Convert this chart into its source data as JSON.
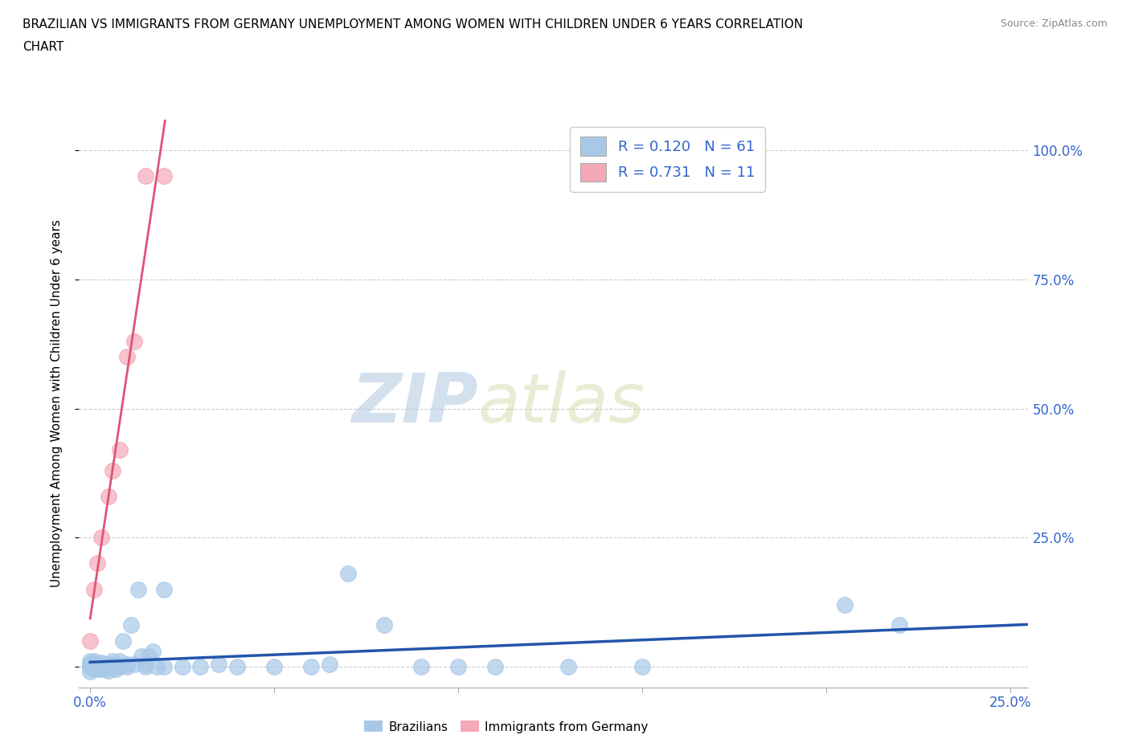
{
  "title_line1": "BRAZILIAN VS IMMIGRANTS FROM GERMANY UNEMPLOYMENT AMONG WOMEN WITH CHILDREN UNDER 6 YEARS CORRELATION",
  "title_line2": "CHART",
  "source": "Source: ZipAtlas.com",
  "ylabel": "Unemployment Among Women with Children Under 6 years",
  "xlim": [
    -0.003,
    0.255
  ],
  "ylim": [
    -0.04,
    1.06
  ],
  "xticks": [
    0.0,
    0.05,
    0.1,
    0.15,
    0.2,
    0.25
  ],
  "xticklabels": [
    "0.0%",
    "",
    "",
    "",
    "",
    "25.0%"
  ],
  "yticks": [
    0.0,
    0.25,
    0.5,
    0.75,
    1.0
  ],
  "yticklabels_right": [
    "",
    "25.0%",
    "50.0%",
    "75.0%",
    "100.0%"
  ],
  "R_blue": 0.12,
  "N_blue": 61,
  "R_pink": 0.731,
  "N_pink": 11,
  "blue_color": "#a8c8e8",
  "pink_color": "#f4a8b8",
  "blue_line_color": "#2255aa",
  "pink_line_color": "#dd5577",
  "legend_box_blue": "#a8c8e8",
  "legend_box_pink": "#f4a8b8",
  "legend_text_color": "#3366cc",
  "grid_color": "#cccccc",
  "watermark_ZIP": "ZIP",
  "watermark_atlas": "atlas",
  "watermark_color": "#c8d8e8",
  "blue_x": [
    0.0,
    0.0,
    0.0,
    0.0,
    0.0,
    0.0,
    0.001,
    0.001,
    0.001,
    0.001,
    0.001,
    0.002,
    0.002,
    0.002,
    0.002,
    0.003,
    0.003,
    0.003,
    0.003,
    0.004,
    0.004,
    0.004,
    0.005,
    0.005,
    0.005,
    0.006,
    0.006,
    0.007,
    0.007,
    0.008,
    0.008,
    0.009,
    0.01,
    0.01,
    0.011,
    0.012,
    0.013,
    0.014,
    0.015,
    0.015,
    0.016,
    0.017,
    0.018,
    0.02,
    0.02,
    0.025,
    0.03,
    0.035,
    0.04,
    0.05,
    0.06,
    0.065,
    0.07,
    0.08,
    0.09,
    0.1,
    0.11,
    0.13,
    0.15,
    0.205,
    0.22
  ],
  "blue_y": [
    0.005,
    0.01,
    0.0,
    0.005,
    0.0,
    -0.01,
    0.0,
    0.005,
    0.01,
    0.0,
    -0.005,
    0.0,
    0.005,
    0.0,
    -0.005,
    0.0,
    0.008,
    0.003,
    -0.005,
    0.0,
    0.005,
    -0.005,
    0.0,
    0.005,
    -0.008,
    0.0,
    0.01,
    0.005,
    -0.005,
    0.0,
    0.01,
    0.05,
    0.0,
    0.005,
    0.08,
    0.005,
    0.15,
    0.02,
    0.0,
    0.005,
    0.02,
    0.03,
    0.0,
    0.0,
    0.15,
    0.0,
    0.0,
    0.005,
    0.0,
    0.0,
    0.0,
    0.005,
    0.18,
    0.08,
    0.0,
    0.0,
    0.0,
    0.0,
    0.0,
    0.12,
    0.08
  ],
  "pink_x": [
    0.0,
    0.001,
    0.002,
    0.003,
    0.005,
    0.006,
    0.008,
    0.01,
    0.012,
    0.015,
    0.02
  ],
  "pink_y": [
    0.05,
    0.15,
    0.2,
    0.25,
    0.33,
    0.38,
    0.42,
    0.6,
    0.63,
    0.95,
    0.95
  ]
}
